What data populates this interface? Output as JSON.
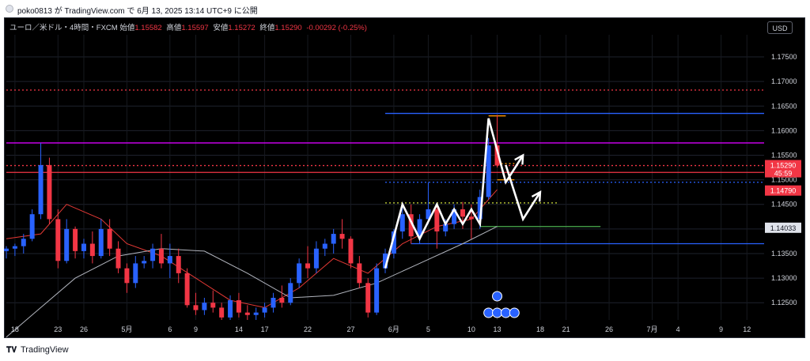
{
  "header": {
    "publish_text": "poko0813 が TradingView.com で 6月 13, 2025 13:14 UTC+9 に公開"
  },
  "legend": {
    "symbol": "ユーロ／米ドル・4時間・FXCM",
    "open_label": "始値",
    "open": "1.15582",
    "high_label": "高値",
    "high": "1.15597",
    "low_label": "安値",
    "low": "1.15272",
    "close_label": "終値",
    "close": "1.15290",
    "change": "-0.00292 (-0.25%)"
  },
  "currency_button": "USD",
  "price_axis": {
    "ticks": [
      "1.17500",
      "1.17000",
      "1.16500",
      "1.16000",
      "1.15500",
      "1.15000",
      "1.14500",
      "1.14000",
      "1.13500",
      "1.13000",
      "1.12500"
    ],
    "current_price": "1.15290",
    "countdown": "45:59",
    "red_level": "1.14790",
    "gray_level": "1.14033"
  },
  "time_axis": {
    "labels": [
      "18",
      "23",
      "26",
      "5月",
      "6",
      "9",
      "14",
      "17",
      "22",
      "27",
      "6月",
      "5",
      "10",
      "13",
      "18",
      "21",
      "26",
      "7月",
      "4",
      "9",
      "12"
    ]
  },
  "colors": {
    "up": "#2962ff",
    "down": "#f23645",
    "magenta": "#d500f9",
    "blue_line": "#2962ff",
    "orange": "#ff9800",
    "green": "#4caf50",
    "ma_fast": "#e53935",
    "ma_slow": "#b2b5be"
  },
  "footer": {
    "brand": "TradingView"
  },
  "chart_data": {
    "type": "candlestick",
    "symbol": "EUR/USD",
    "timeframe": "4H",
    "ylim": [
      1.1215,
      1.1795
    ],
    "x_start": "2025-04-17",
    "x_end": "2025-07-14",
    "ohlc": [
      [
        "2025-04-17",
        1.1355,
        1.1365,
        1.134,
        1.136
      ],
      [
        "2025-04-18",
        1.136,
        1.137,
        1.1345,
        1.1365
      ],
      [
        "2025-04-19",
        1.1365,
        1.139,
        1.135,
        1.138
      ],
      [
        "2025-04-20",
        1.138,
        1.144,
        1.1375,
        1.143
      ],
      [
        "2025-04-21",
        1.143,
        1.1575,
        1.142,
        1.153
      ],
      [
        "2025-04-22",
        1.153,
        1.1545,
        1.141,
        1.142
      ],
      [
        "2025-04-23",
        1.142,
        1.144,
        1.132,
        1.1335
      ],
      [
        "2025-04-24",
        1.1335,
        1.142,
        1.133,
        1.14
      ],
      [
        "2025-04-25",
        1.14,
        1.1405,
        1.134,
        1.1355
      ],
      [
        "2025-04-26",
        1.1355,
        1.138,
        1.134,
        1.137
      ],
      [
        "2025-04-27",
        1.137,
        1.1395,
        1.133,
        1.1345
      ],
      [
        "2025-04-28",
        1.1345,
        1.142,
        1.134,
        1.14
      ],
      [
        "2025-04-29",
        1.14,
        1.142,
        1.1345,
        1.136
      ],
      [
        "2025-04-30",
        1.136,
        1.1375,
        1.131,
        1.132
      ],
      [
        "2025-05-01",
        1.132,
        1.133,
        1.127,
        1.129
      ],
      [
        "2025-05-02",
        1.129,
        1.1345,
        1.128,
        1.133
      ],
      [
        "2025-05-03",
        1.133,
        1.1345,
        1.132,
        1.1335
      ],
      [
        "2025-05-04",
        1.1335,
        1.137,
        1.132,
        1.136
      ],
      [
        "2025-05-05",
        1.136,
        1.139,
        1.132,
        1.133
      ],
      [
        "2025-05-06",
        1.133,
        1.137,
        1.13,
        1.1345
      ],
      [
        "2025-05-07",
        1.1345,
        1.136,
        1.129,
        1.131
      ],
      [
        "2025-05-08",
        1.131,
        1.132,
        1.124,
        1.1245
      ],
      [
        "2025-05-09",
        1.1245,
        1.127,
        1.1225,
        1.1235
      ],
      [
        "2025-05-10",
        1.1235,
        1.126,
        1.1225,
        1.125
      ],
      [
        "2025-05-11",
        1.125,
        1.1275,
        1.123,
        1.124
      ],
      [
        "2025-05-12",
        1.124,
        1.125,
        1.1215,
        1.122
      ],
      [
        "2025-05-13",
        1.122,
        1.1265,
        1.1215,
        1.1255
      ],
      [
        "2025-05-14",
        1.1255,
        1.127,
        1.122,
        1.123
      ],
      [
        "2025-05-15",
        1.123,
        1.1245,
        1.1215,
        1.1225
      ],
      [
        "2025-05-16",
        1.1225,
        1.124,
        1.1215,
        1.123
      ],
      [
        "2025-05-17",
        1.123,
        1.125,
        1.122,
        1.124
      ],
      [
        "2025-05-18",
        1.124,
        1.127,
        1.123,
        1.126
      ],
      [
        "2025-05-19",
        1.126,
        1.1285,
        1.124,
        1.125
      ],
      [
        "2025-05-20",
        1.125,
        1.13,
        1.1245,
        1.129
      ],
      [
        "2025-05-21",
        1.129,
        1.134,
        1.128,
        1.133
      ],
      [
        "2025-05-22",
        1.133,
        1.1365,
        1.13,
        1.132
      ],
      [
        "2025-05-23",
        1.132,
        1.1375,
        1.131,
        1.136
      ],
      [
        "2025-05-24",
        1.136,
        1.138,
        1.1345,
        1.137
      ],
      [
        "2025-05-25",
        1.137,
        1.14,
        1.135,
        1.139
      ],
      [
        "2025-05-26",
        1.139,
        1.142,
        1.136,
        1.138
      ],
      [
        "2025-05-27",
        1.138,
        1.1385,
        1.132,
        1.133
      ],
      [
        "2025-05-28",
        1.133,
        1.1345,
        1.128,
        1.129
      ],
      [
        "2025-05-29",
        1.129,
        1.13,
        1.122,
        1.123
      ],
      [
        "2025-05-30",
        1.123,
        1.133,
        1.1225,
        1.132
      ],
      [
        "2025-05-31",
        1.132,
        1.136,
        1.131,
        1.135
      ],
      [
        "2025-06-01",
        1.135,
        1.14,
        1.134,
        1.1395
      ],
      [
        "2025-06-02",
        1.1395,
        1.1445,
        1.138,
        1.143
      ],
      [
        "2025-06-03",
        1.143,
        1.145,
        1.137,
        1.1385
      ],
      [
        "2025-06-04",
        1.1385,
        1.143,
        1.137,
        1.142
      ],
      [
        "2025-06-05",
        1.142,
        1.1495,
        1.141,
        1.144
      ],
      [
        "2025-06-06",
        1.144,
        1.145,
        1.136,
        1.1395
      ],
      [
        "2025-06-07",
        1.1395,
        1.142,
        1.1385,
        1.141
      ],
      [
        "2025-06-08",
        1.141,
        1.145,
        1.14,
        1.144
      ],
      [
        "2025-06-09",
        1.144,
        1.1455,
        1.14,
        1.1425
      ],
      [
        "2025-06-10",
        1.1425,
        1.145,
        1.138,
        1.142
      ],
      [
        "2025-06-11",
        1.142,
        1.148,
        1.14,
        1.1465
      ],
      [
        "2025-06-12",
        1.1465,
        1.1585,
        1.146,
        1.157
      ],
      [
        "2025-06-13",
        1.157,
        1.1632,
        1.1525,
        1.1529
      ]
    ],
    "moving_averages": [
      {
        "color": "#e53935",
        "points": [
          [
            "2025-04-17",
            1.138
          ],
          [
            "2025-04-21",
            1.139
          ],
          [
            "2025-04-24",
            1.145
          ],
          [
            "2025-04-28",
            1.142
          ],
          [
            "2025-05-01",
            1.137
          ],
          [
            "2025-05-05",
            1.1345
          ],
          [
            "2025-05-09",
            1.13
          ],
          [
            "2025-05-13",
            1.1255
          ],
          [
            "2025-05-17",
            1.124
          ],
          [
            "2025-05-21",
            1.128
          ],
          [
            "2025-05-25",
            1.134
          ],
          [
            "2025-05-29",
            1.131
          ],
          [
            "2025-06-02",
            1.137
          ],
          [
            "2025-06-06",
            1.1405
          ],
          [
            "2025-06-10",
            1.142
          ],
          [
            "2025-06-13",
            1.148
          ]
        ]
      },
      {
        "color": "#b2b5be",
        "points": [
          [
            "2025-04-17",
            1.118
          ],
          [
            "2025-04-21",
            1.124
          ],
          [
            "2025-04-25",
            1.13
          ],
          [
            "2025-04-30",
            1.1345
          ],
          [
            "2025-05-05",
            1.136
          ],
          [
            "2025-05-10",
            1.1355
          ],
          [
            "2025-05-15",
            1.131
          ],
          [
            "2025-05-20",
            1.126
          ],
          [
            "2025-05-25",
            1.1265
          ],
          [
            "2025-05-30",
            1.129
          ],
          [
            "2025-06-04",
            1.133
          ],
          [
            "2025-06-09",
            1.137
          ],
          [
            "2025-06-13",
            1.1405
          ]
        ]
      }
    ],
    "horizontal_levels": [
      {
        "y": 1.16825,
        "color": "#f23645",
        "style": "dotted",
        "from": "2025-04-17"
      },
      {
        "y": 1.1635,
        "color": "#2962ff",
        "style": "solid",
        "from": "2025-05-31"
      },
      {
        "y": 1.163,
        "color": "#ff9800",
        "style": "solid",
        "from": "2025-06-12",
        "to": "2025-06-14"
      },
      {
        "y": 1.1575,
        "color": "#d500f9",
        "style": "solid",
        "from": "2025-04-17"
      },
      {
        "y": 1.1529,
        "color": "#f23645",
        "style": "dotted",
        "from": "2025-04-17"
      },
      {
        "y": 1.1515,
        "color": "#f23645",
        "style": "solid",
        "from": "2025-04-17"
      },
      {
        "y": 1.1533,
        "color": "#ff9800",
        "style": "dotted",
        "from": "2025-06-13",
        "to": "2025-06-15"
      },
      {
        "y": 1.15,
        "color": "#ff9800",
        "style": "solid",
        "from": "2025-06-13",
        "to": "2025-06-15"
      },
      {
        "y": 1.1495,
        "color": "#2962ff",
        "style": "dotted",
        "from": "2025-05-31"
      },
      {
        "y": 1.1453,
        "color": "#cddc39",
        "style": "dotted",
        "from": "2025-05-31",
        "to": "2025-06-20"
      },
      {
        "y": 1.1405,
        "color": "#4caf50",
        "style": "solid",
        "from": "2025-06-11",
        "to": "2025-06-25"
      },
      {
        "y": 1.137,
        "color": "#2962ff",
        "style": "solid",
        "from": "2025-06-03"
      }
    ],
    "annotations": [
      {
        "type": "polyline",
        "color": "#ffffff",
        "points": [
          [
            "2025-05-31",
            1.132
          ],
          [
            "2025-06-02",
            1.145
          ],
          [
            "2025-06-04",
            1.138
          ],
          [
            "2025-06-06",
            1.145
          ],
          [
            "2025-06-07",
            1.141
          ],
          [
            "2025-06-08",
            1.144
          ],
          [
            "2025-06-09",
            1.141
          ],
          [
            "2025-06-10",
            1.144
          ],
          [
            "2025-06-11",
            1.141
          ],
          [
            "2025-06-12",
            1.1625
          ],
          [
            "2025-06-14",
            1.1495
          ],
          [
            "2025-06-16",
            1.155
          ]
        ],
        "arrow": true
      },
      {
        "type": "polyline",
        "color": "#ffffff",
        "points": [
          [
            "2025-06-14",
            1.153
          ],
          [
            "2025-06-16",
            1.142
          ],
          [
            "2025-06-18",
            1.1475
          ]
        ],
        "arrow": true
      }
    ]
  }
}
